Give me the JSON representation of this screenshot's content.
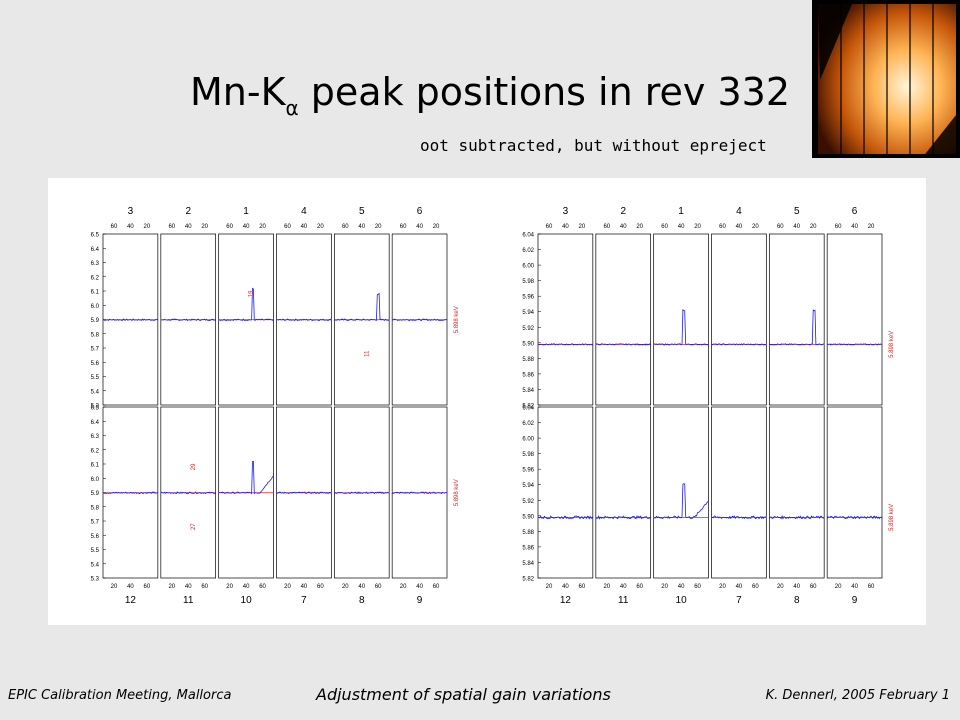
{
  "title": {
    "main": "Mn-K",
    "sub": "α",
    "rest": " peak positions in rev 332"
  },
  "subtitle": "oot subtracted, but without epreject",
  "footer": {
    "left": "EPIC Calibration Meeting, Mallorca",
    "center": "Adjustment of spatial gain variations",
    "right": "K. Dennerl, 2005 February 1"
  },
  "colors": {
    "trace": "#1a1aff",
    "reference": "#dd2222",
    "text": "#000000"
  },
  "chart_data": [
    {
      "type": "line",
      "title": "",
      "top_ccds": [
        "3",
        "2",
        "1",
        "4",
        "5",
        "6"
      ],
      "bottom_ccds": [
        "12",
        "11",
        "10",
        "7",
        "8",
        "9"
      ],
      "top_ticks": [
        "60",
        "40",
        "20"
      ],
      "bottom_ticks": [
        "20",
        "40",
        "60"
      ],
      "yticks": [
        "6.5",
        "6.4",
        "6.3",
        "6.2",
        "6.1",
        "6.0",
        "5.9",
        "5.8",
        "5.7",
        "5.6",
        "5.5",
        "5.4",
        "5.3"
      ],
      "ylim": [
        5.3,
        6.5
      ],
      "reference_value": 5.898,
      "reference_label": "5.898 keV",
      "annotations_top": [
        {
          "ccd": "1",
          "label": "19"
        },
        {
          "ccd": "5",
          "label": "11"
        }
      ],
      "annotations_bottom": [
        {
          "ccd": "11",
          "label": "29"
        },
        {
          "ccd": "11",
          "label": "27"
        }
      ]
    },
    {
      "type": "line",
      "title": "",
      "top_ccds": [
        "3",
        "2",
        "1",
        "4",
        "5",
        "6"
      ],
      "bottom_ccds": [
        "12",
        "11",
        "10",
        "7",
        "8",
        "9"
      ],
      "top_ticks": [
        "60",
        "40",
        "20"
      ],
      "bottom_ticks": [
        "20",
        "40",
        "60"
      ],
      "yticks": [
        "6.04",
        "6.02",
        "6.00",
        "5.98",
        "5.96",
        "5.94",
        "5.92",
        "5.90",
        "5.88",
        "5.86",
        "5.84",
        "5.82"
      ],
      "ylim": [
        5.82,
        6.04
      ],
      "reference_value": 5.898,
      "reference_label": "5.898 keV"
    }
  ]
}
